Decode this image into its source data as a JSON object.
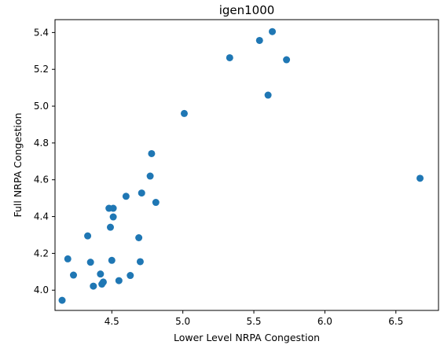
{
  "chart_data": {
    "type": "scatter",
    "title": "igen1000",
    "xlabel": "Lower Level NRPA Congestion",
    "ylabel": "Full NRPA Congestion",
    "xlim": [
      4.1,
      6.8
    ],
    "ylim": [
      3.89,
      5.47
    ],
    "x_ticks": [
      4.5,
      5.0,
      5.5,
      6.0,
      6.5
    ],
    "x_tick_labels": [
      "4.5",
      "5.0",
      "5.5",
      "6.0",
      "6.5"
    ],
    "y_ticks": [
      4.0,
      4.2,
      4.4,
      4.6,
      4.8,
      5.0,
      5.2,
      5.4
    ],
    "y_tick_labels": [
      "4.0",
      "4.2",
      "4.4",
      "4.6",
      "4.8",
      "5.0",
      "5.2",
      "5.4"
    ],
    "grid": false,
    "marker_color": "#1f77b4",
    "points": [
      {
        "x": 4.15,
        "y": 3.945
      },
      {
        "x": 4.19,
        "y": 4.17
      },
      {
        "x": 4.23,
        "y": 4.082
      },
      {
        "x": 4.33,
        "y": 4.295
      },
      {
        "x": 4.35,
        "y": 4.152
      },
      {
        "x": 4.37,
        "y": 4.022
      },
      {
        "x": 4.42,
        "y": 4.088
      },
      {
        "x": 4.43,
        "y": 4.033
      },
      {
        "x": 4.44,
        "y": 4.044
      },
      {
        "x": 4.48,
        "y": 4.445
      },
      {
        "x": 4.49,
        "y": 4.342
      },
      {
        "x": 4.5,
        "y": 4.162
      },
      {
        "x": 4.51,
        "y": 4.445
      },
      {
        "x": 4.51,
        "y": 4.398
      },
      {
        "x": 4.55,
        "y": 4.052
      },
      {
        "x": 4.6,
        "y": 4.51
      },
      {
        "x": 4.63,
        "y": 4.08
      },
      {
        "x": 4.69,
        "y": 4.285
      },
      {
        "x": 4.7,
        "y": 4.155
      },
      {
        "x": 4.71,
        "y": 4.528
      },
      {
        "x": 4.77,
        "y": 4.62
      },
      {
        "x": 4.78,
        "y": 4.742
      },
      {
        "x": 4.81,
        "y": 4.477
      },
      {
        "x": 5.01,
        "y": 4.96
      },
      {
        "x": 5.33,
        "y": 5.263
      },
      {
        "x": 5.54,
        "y": 5.357
      },
      {
        "x": 5.6,
        "y": 5.06
      },
      {
        "x": 5.63,
        "y": 5.405
      },
      {
        "x": 5.73,
        "y": 5.252
      },
      {
        "x": 6.67,
        "y": 4.608
      }
    ]
  }
}
